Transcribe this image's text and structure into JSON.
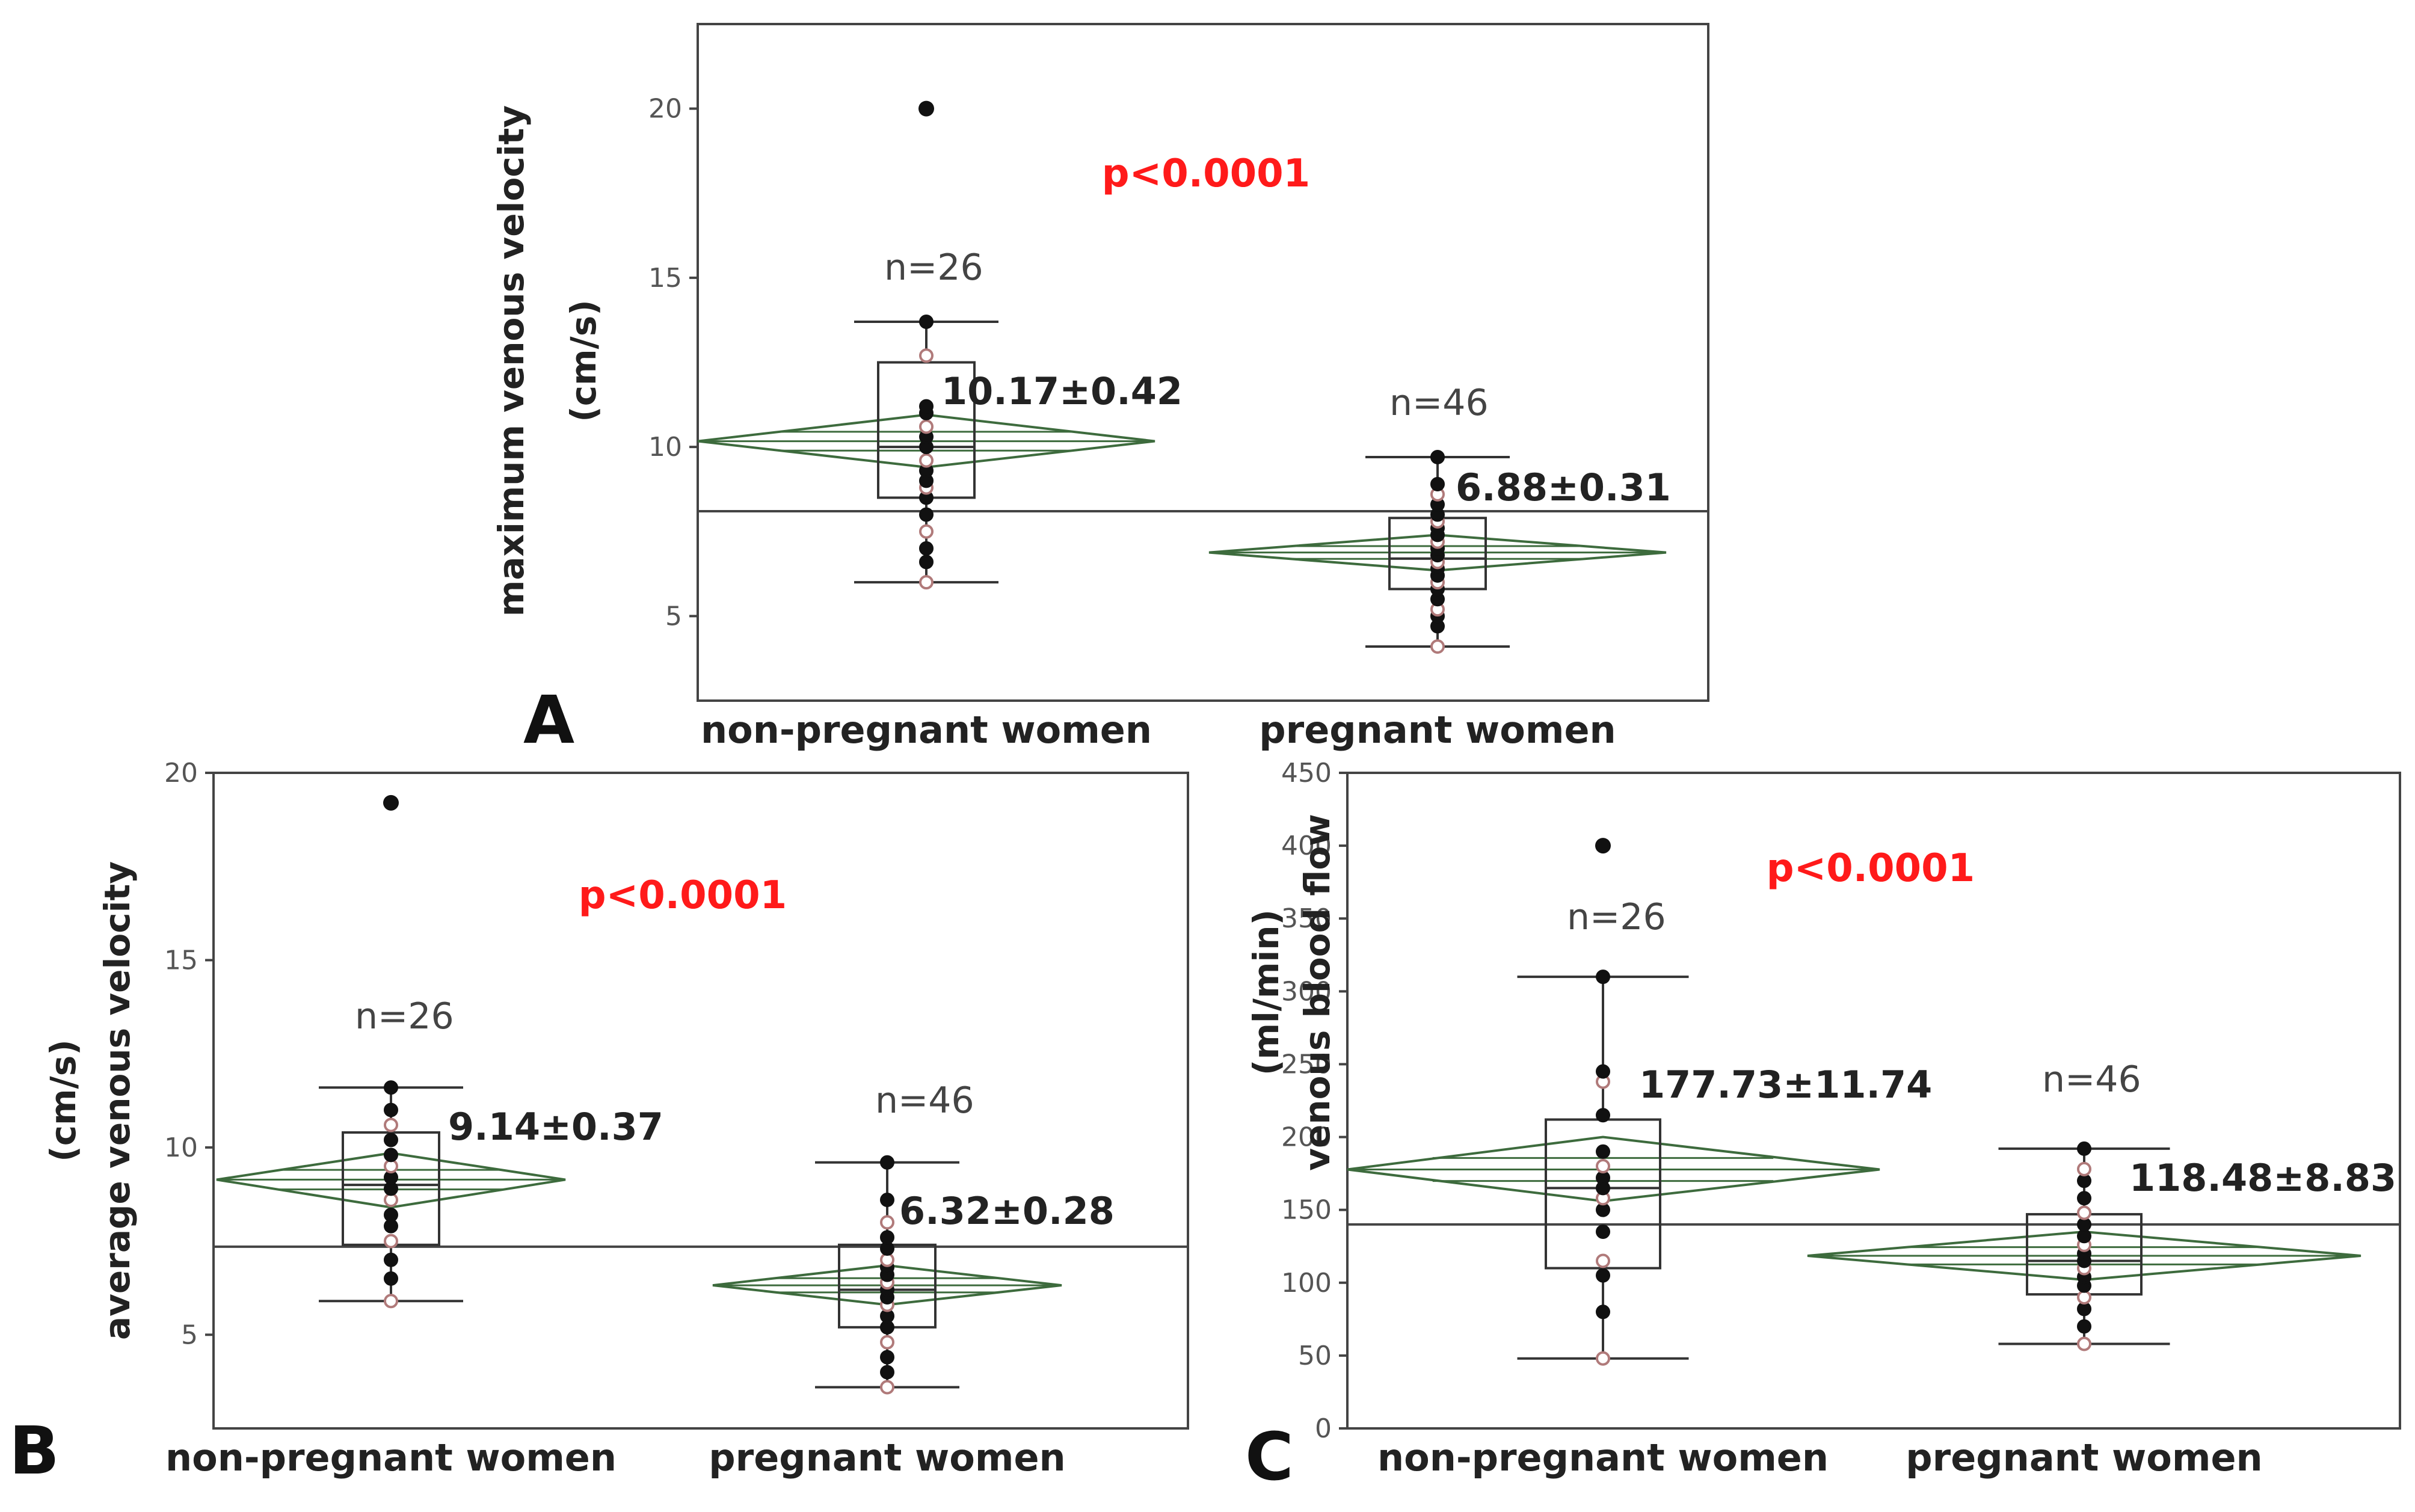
{
  "figure": {
    "panel_labels": [
      "A",
      "B",
      "C"
    ],
    "colors": {
      "axis": "#444444",
      "tick_text": "#555555",
      "value_text": "#222222",
      "count_text": "#444444",
      "pvalue": "#ff1a1a",
      "diamond": "#3d6b3d",
      "box": "#333333",
      "point_fill": "#111111",
      "point_hollow": "#b07a7a"
    }
  },
  "chart_data": [
    {
      "panel": "A",
      "type": "box",
      "ylabel_line1": "maximum venous velocity",
      "ylabel_line2": "(cm/s)",
      "categories": [
        "non-pregnant women",
        "pregnant women"
      ],
      "yticks": [
        5,
        10,
        15,
        20
      ],
      "ylim": [
        2.5,
        22.5
      ],
      "grand_mean": 8.1,
      "pvalue": "p<0.0001",
      "groups": [
        {
          "name": "non-pregnant women",
          "n_label": "n=26",
          "stat_label": "10.17±0.42",
          "mean": 10.17,
          "ci": [
            9.4,
            10.95
          ],
          "q1": 8.5,
          "median": 10.0,
          "q3": 12.5,
          "whisker_low": 6.0,
          "whisker_high": 13.7,
          "outliers": [
            20.0
          ],
          "points": [
            6.0,
            6.6,
            7.0,
            7.5,
            8.0,
            8.5,
            8.8,
            9.0,
            9.3,
            9.6,
            10.0,
            10.3,
            10.6,
            11.0,
            11.2,
            12.7,
            13.7
          ]
        },
        {
          "name": "pregnant women",
          "n_label": "n=46",
          "stat_label": "6.88±0.31",
          "mean": 6.88,
          "ci": [
            6.35,
            7.4
          ],
          "q1": 5.8,
          "median": 6.7,
          "q3": 7.9,
          "whisker_low": 4.1,
          "whisker_high": 9.7,
          "outliers": [],
          "points": [
            4.1,
            4.7,
            5.0,
            5.2,
            5.5,
            5.8,
            6.0,
            6.2,
            6.4,
            6.6,
            6.8,
            7.0,
            7.2,
            7.4,
            7.6,
            7.8,
            8.0,
            8.3,
            8.6,
            8.9,
            9.7
          ]
        }
      ]
    },
    {
      "panel": "B",
      "type": "box",
      "ylabel_line1": "average venous velocity",
      "ylabel_line2": "(cm/s)",
      "categories": [
        "non-pregnant women",
        "pregnant women"
      ],
      "yticks": [
        5,
        10,
        15,
        20
      ],
      "ylim": [
        2.5,
        20
      ],
      "grand_mean": 7.35,
      "pvalue": "p<0.0001",
      "groups": [
        {
          "name": "non-pregnant women",
          "n_label": "n=26",
          "stat_label": "9.14±0.37",
          "mean": 9.14,
          "ci": [
            8.4,
            9.85
          ],
          "q1": 7.4,
          "median": 9.0,
          "q3": 10.4,
          "whisker_low": 5.9,
          "whisker_high": 11.6,
          "outliers": [
            19.2
          ],
          "points": [
            5.9,
            6.5,
            7.0,
            7.5,
            7.9,
            8.2,
            8.6,
            8.9,
            9.2,
            9.5,
            9.8,
            10.2,
            10.6,
            11.0,
            11.6
          ]
        },
        {
          "name": "pregnant women",
          "n_label": "n=46",
          "stat_label": "6.32±0.28",
          "mean": 6.32,
          "ci": [
            5.8,
            6.85
          ],
          "q1": 5.2,
          "median": 6.2,
          "q3": 7.4,
          "whisker_low": 3.6,
          "whisker_high": 9.6,
          "outliers": [],
          "points": [
            3.6,
            4.0,
            4.4,
            4.8,
            5.2,
            5.5,
            5.8,
            6.0,
            6.2,
            6.4,
            6.6,
            6.8,
            7.0,
            7.3,
            7.6,
            8.0,
            8.6,
            9.6
          ]
        }
      ]
    },
    {
      "panel": "C",
      "type": "box",
      "ylabel_line1": "venous blood flow",
      "ylabel_line2": "(ml/min)",
      "categories": [
        "non-pregnant women",
        "pregnant women"
      ],
      "yticks": [
        0,
        50,
        100,
        150,
        200,
        250,
        300,
        350,
        400,
        450
      ],
      "ylim": [
        0,
        450
      ],
      "grand_mean": 140,
      "pvalue": "p<0.0001",
      "groups": [
        {
          "name": "non-pregnant women",
          "n_label": "n=26",
          "stat_label": "177.73±11.74",
          "mean": 177.73,
          "ci": [
            156,
            200
          ],
          "q1": 110,
          "median": 165,
          "q3": 212,
          "whisker_low": 48,
          "whisker_high": 310,
          "outliers": [
            400
          ],
          "points": [
            48,
            80,
            105,
            115,
            135,
            150,
            158,
            165,
            172,
            180,
            190,
            215,
            238,
            245,
            310
          ]
        },
        {
          "name": "pregnant women",
          "n_label": "n=46",
          "stat_label": "118.48±8.83",
          "mean": 118.48,
          "ci": [
            102,
            135
          ],
          "q1": 92,
          "median": 115,
          "q3": 147,
          "whisker_low": 58,
          "whisker_high": 192,
          "outliers": [],
          "points": [
            58,
            70,
            82,
            90,
            98,
            104,
            110,
            115,
            120,
            126,
            132,
            140,
            148,
            158,
            170,
            178,
            192
          ]
        }
      ]
    }
  ]
}
